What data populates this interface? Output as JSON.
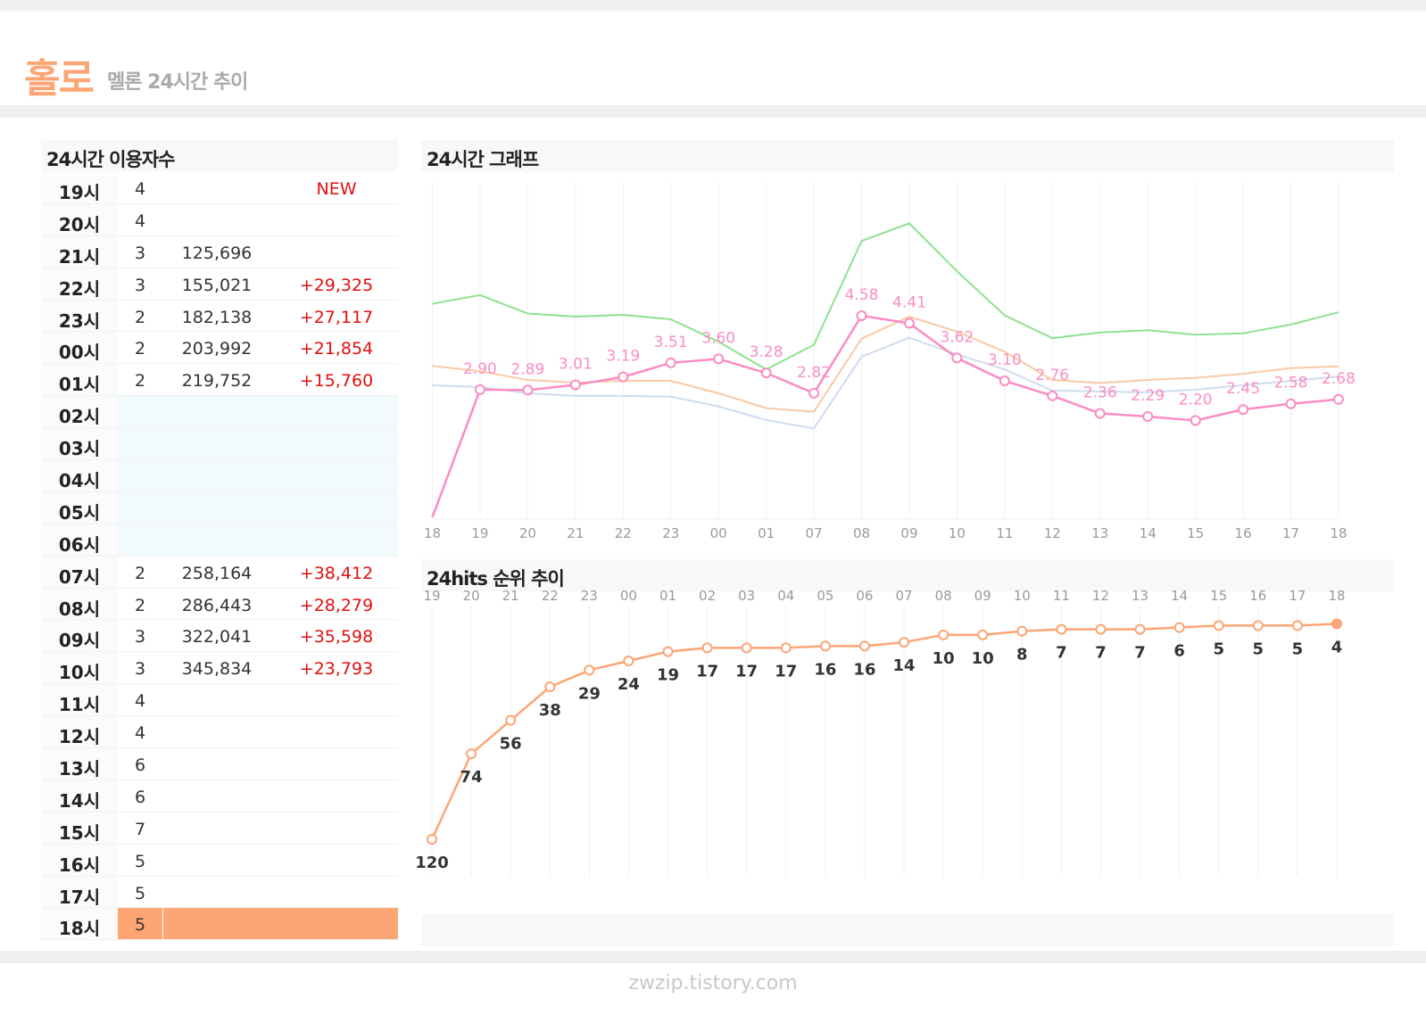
{
  "header": {
    "brand": "홀로",
    "subtitle": "멜론 24시간 추이"
  },
  "table": {
    "title": "24시간 이용자수",
    "rows": [
      {
        "hour": "19시",
        "rank": "4",
        "count": "",
        "delta": "NEW",
        "state": "normal"
      },
      {
        "hour": "20시",
        "rank": "4",
        "count": "",
        "delta": "",
        "state": "normal"
      },
      {
        "hour": "21시",
        "rank": "3",
        "count": "125,696",
        "delta": "",
        "state": "normal"
      },
      {
        "hour": "22시",
        "rank": "3",
        "count": "155,021",
        "delta": "+29,325",
        "state": "normal"
      },
      {
        "hour": "23시",
        "rank": "2",
        "count": "182,138",
        "delta": "+27,117",
        "state": "normal"
      },
      {
        "hour": "00시",
        "rank": "2",
        "count": "203,992",
        "delta": "+21,854",
        "state": "normal"
      },
      {
        "hour": "01시",
        "rank": "2",
        "count": "219,752",
        "delta": "+15,760",
        "state": "normal"
      },
      {
        "hour": "02시",
        "rank": "",
        "count": "",
        "delta": "",
        "state": "blank"
      },
      {
        "hour": "03시",
        "rank": "",
        "count": "",
        "delta": "",
        "state": "blank"
      },
      {
        "hour": "04시",
        "rank": "",
        "count": "",
        "delta": "",
        "state": "blank"
      },
      {
        "hour": "05시",
        "rank": "",
        "count": "",
        "delta": "",
        "state": "blank"
      },
      {
        "hour": "06시",
        "rank": "",
        "count": "",
        "delta": "",
        "state": "blank"
      },
      {
        "hour": "07시",
        "rank": "2",
        "count": "258,164",
        "delta": "+38,412",
        "state": "normal"
      },
      {
        "hour": "08시",
        "rank": "2",
        "count": "286,443",
        "delta": "+28,279",
        "state": "normal"
      },
      {
        "hour": "09시",
        "rank": "3",
        "count": "322,041",
        "delta": "+35,598",
        "state": "normal"
      },
      {
        "hour": "10시",
        "rank": "3",
        "count": "345,834",
        "delta": "+23,793",
        "state": "normal"
      },
      {
        "hour": "11시",
        "rank": "4",
        "count": "",
        "delta": "",
        "state": "normal"
      },
      {
        "hour": "12시",
        "rank": "4",
        "count": "",
        "delta": "",
        "state": "normal"
      },
      {
        "hour": "13시",
        "rank": "6",
        "count": "",
        "delta": "",
        "state": "normal"
      },
      {
        "hour": "14시",
        "rank": "6",
        "count": "",
        "delta": "",
        "state": "normal"
      },
      {
        "hour": "15시",
        "rank": "7",
        "count": "",
        "delta": "",
        "state": "normal"
      },
      {
        "hour": "16시",
        "rank": "5",
        "count": "",
        "delta": "",
        "state": "normal"
      },
      {
        "hour": "17시",
        "rank": "5",
        "count": "",
        "delta": "",
        "state": "normal"
      },
      {
        "hour": "18시",
        "rank": "5",
        "count": "",
        "delta": "",
        "state": "highlight"
      }
    ]
  },
  "graph_title": "24시간 그래프",
  "hits_title": "24hits 순위 추이",
  "footer": "zwzip.tistory.com",
  "colors": {
    "accent": "#fda574",
    "pink": "#fb8cc4",
    "green": "#8ee28e",
    "peach": "#f9c9a4",
    "lightblue": "#cfdcef",
    "red": "#e01010",
    "grid": "#f0f0f0"
  },
  "chart_data": [
    {
      "type": "line",
      "title": "24시간 그래프",
      "x": [
        "18",
        "19",
        "20",
        "21",
        "22",
        "23",
        "00",
        "01",
        "07",
        "08",
        "09",
        "10",
        "11",
        "12",
        "13",
        "14",
        "15",
        "16",
        "17",
        "18"
      ],
      "series": [
        {
          "values": [
            0,
            2.9,
            2.89,
            3.01,
            3.19,
            3.51,
            3.6,
            3.28,
            2.82,
            4.58,
            4.41,
            3.62,
            3.1,
            2.76,
            2.36,
            2.29,
            2.2,
            2.45,
            2.58,
            2.68
          ],
          "labels": [
            "",
            "2.90",
            "2.89",
            "3.01",
            "3.19",
            "3.51",
            "3.60",
            "3.28",
            "2.82",
            "4.58",
            "4.41",
            "3.62",
            "3.10",
            "2.76",
            "2.36",
            "2.29",
            "2.20",
            "2.45",
            "2.58",
            "2.68"
          ]
        },
        {
          "values": [
            4.85,
            5.05,
            4.63,
            4.56,
            4.6,
            4.5,
            3.99,
            3.36,
            3.92,
            6.28,
            6.68,
            5.59,
            4.59,
            4.07,
            4.2,
            4.25,
            4.15,
            4.18,
            4.38,
            4.66
          ]
        },
        {
          "values": [
            3.44,
            3.32,
            3.12,
            3.06,
            3.1,
            3.1,
            2.82,
            2.48,
            2.4,
            4.06,
            4.56,
            4.22,
            3.76,
            3.12,
            3.05,
            3.12,
            3.17,
            3.26,
            3.39,
            3.43
          ]
        },
        {
          "values": [
            3.0,
            2.96,
            2.82,
            2.76,
            2.76,
            2.74,
            2.52,
            2.21,
            2.02,
            3.65,
            4.08,
            3.7,
            3.36,
            2.88,
            2.86,
            2.84,
            2.9,
            3.0,
            3.1,
            3.2
          ]
        }
      ],
      "ylim": [
        0,
        7.6
      ],
      "grid": "vertical"
    },
    {
      "type": "line",
      "title": "24hits 순위 추이",
      "x": [
        "19",
        "20",
        "21",
        "22",
        "23",
        "00",
        "01",
        "02",
        "03",
        "04",
        "05",
        "06",
        "07",
        "08",
        "09",
        "10",
        "11",
        "12",
        "13",
        "14",
        "15",
        "16",
        "17",
        "18"
      ],
      "series": [
        {
          "values": [
            120,
            74,
            56,
            38,
            29,
            24,
            19,
            17,
            17,
            17,
            16,
            16,
            14,
            10,
            10,
            8,
            7,
            7,
            7,
            6,
            5,
            5,
            5,
            4
          ]
        }
      ],
      "ylim": [
        0,
        120
      ],
      "grid": "vertical"
    }
  ]
}
